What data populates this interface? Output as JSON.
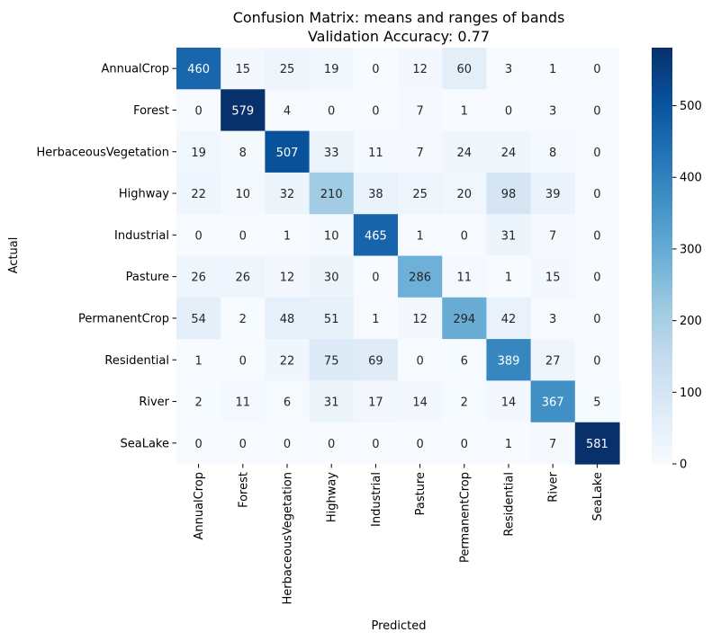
{
  "chart_data": {
    "type": "heatmap",
    "title": "Confusion Matrix: means and ranges of bands",
    "subtitle": "Validation Accuracy: 0.77",
    "xlabel": "Predicted",
    "ylabel": "Actual",
    "x_categories": [
      "AnnualCrop",
      "Forest",
      "HerbaceousVegetation",
      "Highway",
      "Industrial",
      "Pasture",
      "PermanentCrop",
      "Residential",
      "River",
      "SeaLake"
    ],
    "y_categories": [
      "AnnualCrop",
      "Forest",
      "HerbaceousVegetation",
      "Highway",
      "Industrial",
      "Pasture",
      "PermanentCrop",
      "Residential",
      "River",
      "SeaLake"
    ],
    "values": [
      [
        460,
        15,
        25,
        19,
        0,
        12,
        60,
        3,
        1,
        0
      ],
      [
        0,
        579,
        4,
        0,
        0,
        7,
        1,
        0,
        3,
        0
      ],
      [
        19,
        8,
        507,
        33,
        11,
        7,
        24,
        24,
        8,
        0
      ],
      [
        22,
        10,
        32,
        210,
        38,
        25,
        20,
        98,
        39,
        0
      ],
      [
        0,
        0,
        1,
        10,
        465,
        1,
        0,
        31,
        7,
        0
      ],
      [
        26,
        26,
        12,
        30,
        0,
        286,
        11,
        1,
        15,
        0
      ],
      [
        54,
        2,
        48,
        51,
        1,
        12,
        294,
        42,
        3,
        0
      ],
      [
        1,
        0,
        22,
        75,
        69,
        0,
        6,
        389,
        27,
        0
      ],
      [
        2,
        11,
        6,
        31,
        17,
        14,
        2,
        14,
        367,
        5
      ],
      [
        0,
        0,
        0,
        0,
        0,
        0,
        0,
        1,
        7,
        581
      ]
    ],
    "colorbar": {
      "colormap": "Blues",
      "range": [
        0,
        581
      ],
      "ticks": [
        0,
        100,
        200,
        300,
        400,
        500
      ]
    },
    "grid": false,
    "legend": "colorbar-right"
  }
}
